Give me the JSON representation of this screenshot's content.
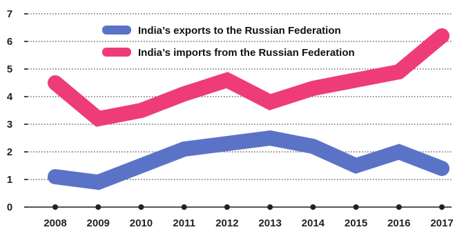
{
  "chart_data": {
    "type": "line",
    "x": [
      "2008",
      "2009",
      "2010",
      "2011",
      "2012",
      "2013",
      "2014",
      "2015",
      "2016",
      "2017"
    ],
    "series": [
      {
        "name": "India’s exports to the Russian Federation",
        "color": "#5b73c6",
        "values": [
          1.1,
          0.9,
          1.5,
          2.1,
          2.3,
          2.5,
          2.2,
          1.5,
          2.0,
          1.4
        ]
      },
      {
        "name": "India’s imports from the Russian Federation",
        "color": "#ee3c78",
        "values": [
          4.5,
          3.2,
          3.5,
          4.1,
          4.6,
          3.8,
          4.3,
          4.6,
          4.9,
          6.2
        ]
      }
    ],
    "yticks": [
      "0",
      "1",
      "2",
      "3",
      "4",
      "5",
      "6",
      "7"
    ],
    "ylim": [
      0,
      7
    ],
    "grid": true,
    "legend": "top-left"
  }
}
